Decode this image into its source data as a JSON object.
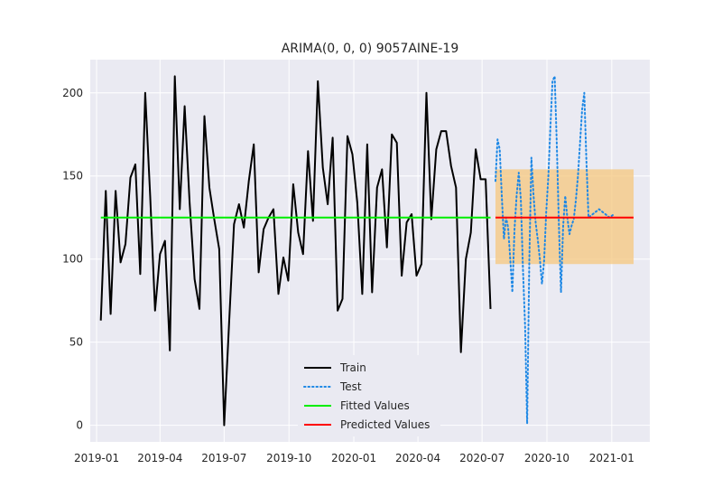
{
  "chart_data": {
    "type": "line",
    "title": "ARIMA(0, 0, 0) 9057AINE-19",
    "xlabel": "",
    "ylabel": "",
    "x_ticks": [
      "2019-01",
      "2019-04",
      "2019-07",
      "2019-10",
      "2020-01",
      "2020-04",
      "2020-07",
      "2020-10",
      "2021-01"
    ],
    "y_ticks": [
      "0",
      "50",
      "100",
      "150",
      "200"
    ],
    "xlim": [
      "2018-12-23",
      "2021-02-24"
    ],
    "ylim": [
      -10,
      220
    ],
    "grid": true,
    "legend_position": "lower-center",
    "background": "#eaeaf2",
    "series": [
      {
        "name": "Train",
        "style": "solid",
        "color": "#000000",
        "x": [
          "2019-01-07",
          "2019-01-14",
          "2019-01-21",
          "2019-01-28",
          "2019-02-04",
          "2019-02-11",
          "2019-02-18",
          "2019-02-25",
          "2019-03-04",
          "2019-03-11",
          "2019-03-18",
          "2019-03-25",
          "2019-04-01",
          "2019-04-08",
          "2019-04-15",
          "2019-04-22",
          "2019-04-29",
          "2019-05-06",
          "2019-05-13",
          "2019-05-20",
          "2019-05-27",
          "2019-06-03",
          "2019-06-10",
          "2019-06-17",
          "2019-06-24",
          "2019-07-01",
          "2019-07-08",
          "2019-07-15",
          "2019-07-22",
          "2019-07-29",
          "2019-08-05",
          "2019-08-12",
          "2019-08-19",
          "2019-08-26",
          "2019-09-02",
          "2019-09-09",
          "2019-09-16",
          "2019-09-23",
          "2019-09-30",
          "2019-10-07",
          "2019-10-14",
          "2019-10-21",
          "2019-10-28",
          "2019-11-04",
          "2019-11-11",
          "2019-11-18",
          "2019-11-25",
          "2019-12-02",
          "2019-12-09",
          "2019-12-16",
          "2019-12-23",
          "2019-12-30",
          "2020-01-06",
          "2020-01-13",
          "2020-01-20",
          "2020-01-27",
          "2020-02-03",
          "2020-02-10",
          "2020-02-17",
          "2020-02-24",
          "2020-03-02",
          "2020-03-09",
          "2020-03-16",
          "2020-03-23",
          "2020-03-30",
          "2020-04-06",
          "2020-04-13",
          "2020-04-20",
          "2020-04-27",
          "2020-05-04",
          "2020-05-11",
          "2020-05-18",
          "2020-05-25",
          "2020-06-01",
          "2020-06-08",
          "2020-06-15",
          "2020-06-22",
          "2020-06-29",
          "2020-07-06",
          "2020-07-13"
        ],
        "values": [
          63,
          141,
          67,
          141,
          98,
          109,
          149,
          157,
          91,
          200,
          138,
          69,
          103,
          111,
          45,
          210,
          130,
          192,
          134,
          88,
          70,
          186,
          143,
          124,
          106,
          0,
          61,
          121,
          133,
          119,
          147,
          169,
          92,
          118,
          125,
          130,
          79,
          101,
          87,
          145,
          116,
          103,
          165,
          123,
          207,
          155,
          133,
          173,
          69,
          76,
          174,
          163,
          134,
          79,
          169,
          80,
          143,
          154,
          107,
          175,
          170,
          90,
          122,
          127,
          90,
          97,
          200,
          124,
          166,
          177,
          177,
          156,
          143,
          44,
          100,
          116,
          166,
          148,
          148,
          70
        ]
      },
      {
        "name": "Test",
        "style": "dotted",
        "color": "#1e88e5",
        "x": [
          "2020-07-20",
          "2020-07-23",
          "2020-07-26",
          "2020-07-29",
          "2020-08-01",
          "2020-08-04",
          "2020-08-07",
          "2020-08-10",
          "2020-08-13",
          "2020-08-16",
          "2020-08-19",
          "2020-08-22",
          "2020-08-25",
          "2020-08-28",
          "2020-08-31",
          "2020-09-03",
          "2020-09-06",
          "2020-09-09",
          "2020-09-12",
          "2020-09-15",
          "2020-09-18",
          "2020-09-21",
          "2020-09-24",
          "2020-09-27",
          "2020-09-30",
          "2020-10-03",
          "2020-10-06",
          "2020-10-09",
          "2020-10-12",
          "2020-10-15",
          "2020-10-18",
          "2020-10-21",
          "2020-10-24",
          "2020-10-27",
          "2020-10-30",
          "2020-11-02",
          "2020-11-05",
          "2020-11-08",
          "2020-11-11",
          "2020-11-14",
          "2020-11-17",
          "2020-11-20",
          "2020-11-23",
          "2020-11-26",
          "2020-11-29",
          "2020-12-02",
          "2020-12-05",
          "2020-12-08",
          "2020-12-11",
          "2020-12-14",
          "2020-12-17",
          "2020-12-20",
          "2020-12-23",
          "2020-12-26",
          "2020-12-29",
          "2021-01-01",
          "2021-01-04"
        ],
        "values": [
          147,
          172,
          166,
          138,
          112,
          125,
          119,
          100,
          80,
          118,
          138,
          152,
          136,
          95,
          60,
          1,
          99,
          161,
          138,
          122,
          112,
          100,
          85,
          99,
          128,
          150,
          180,
          207,
          210,
          170,
          120,
          80,
          120,
          138,
          125,
          115,
          120,
          124,
          135,
          150,
          170,
          190,
          200,
          160,
          125,
          126,
          127,
          128,
          129,
          130,
          129,
          128,
          127,
          126,
          125,
          126,
          127
        ]
      },
      {
        "name": "Fitted Values",
        "style": "solid",
        "color": "#00ee00",
        "x": [
          "2019-01-07",
          "2020-07-13"
        ],
        "values": [
          125,
          125
        ]
      },
      {
        "name": "Predicted Values",
        "style": "solid",
        "color": "#ff0000",
        "x": [
          "2020-07-20",
          "2021-02-01"
        ],
        "values": [
          125,
          125
        ]
      }
    ],
    "confidence_band": {
      "x": [
        "2020-07-20",
        "2021-02-01"
      ],
      "lower": 97,
      "upper": 154,
      "color": "#f5c77e"
    }
  }
}
